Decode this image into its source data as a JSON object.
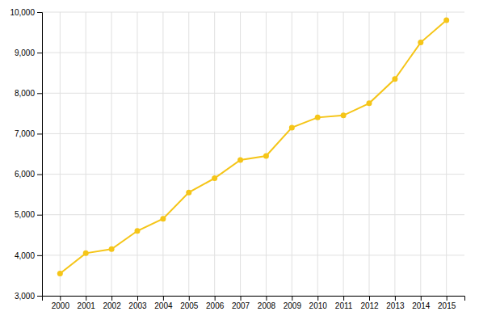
{
  "chart_data": {
    "type": "line",
    "x": [
      2000,
      2001,
      2002,
      2003,
      2004,
      2005,
      2006,
      2007,
      2008,
      2009,
      2010,
      2011,
      2012,
      2013,
      2014,
      2015
    ],
    "values": [
      3550,
      4050,
      4150,
      4600,
      4900,
      5550,
      5900,
      6350,
      6450,
      7150,
      7400,
      7450,
      7750,
      8350,
      9250,
      9800
    ],
    "color": "#F5C518",
    "marker": "circle",
    "xlim": [
      1999.3,
      2015.7
    ],
    "xticks": [
      2000,
      2001,
      2002,
      2003,
      2004,
      2005,
      2006,
      2007,
      2008,
      2009,
      2010,
      2011,
      2012,
      2013,
      2014,
      2015
    ],
    "ylim": [
      3000,
      10000
    ],
    "yticks": [
      {
        "value": 3000,
        "label": "3,000"
      },
      {
        "value": 4000,
        "label": "4,000"
      },
      {
        "value": 5000,
        "label": "5,000"
      },
      {
        "value": 6000,
        "label": "6,000"
      },
      {
        "value": 7000,
        "label": "7,000"
      },
      {
        "value": 8000,
        "label": "8,000"
      },
      {
        "value": 9000,
        "label": "9,000"
      },
      {
        "value": 10000,
        "label": "10,000"
      }
    ],
    "grid": true
  }
}
